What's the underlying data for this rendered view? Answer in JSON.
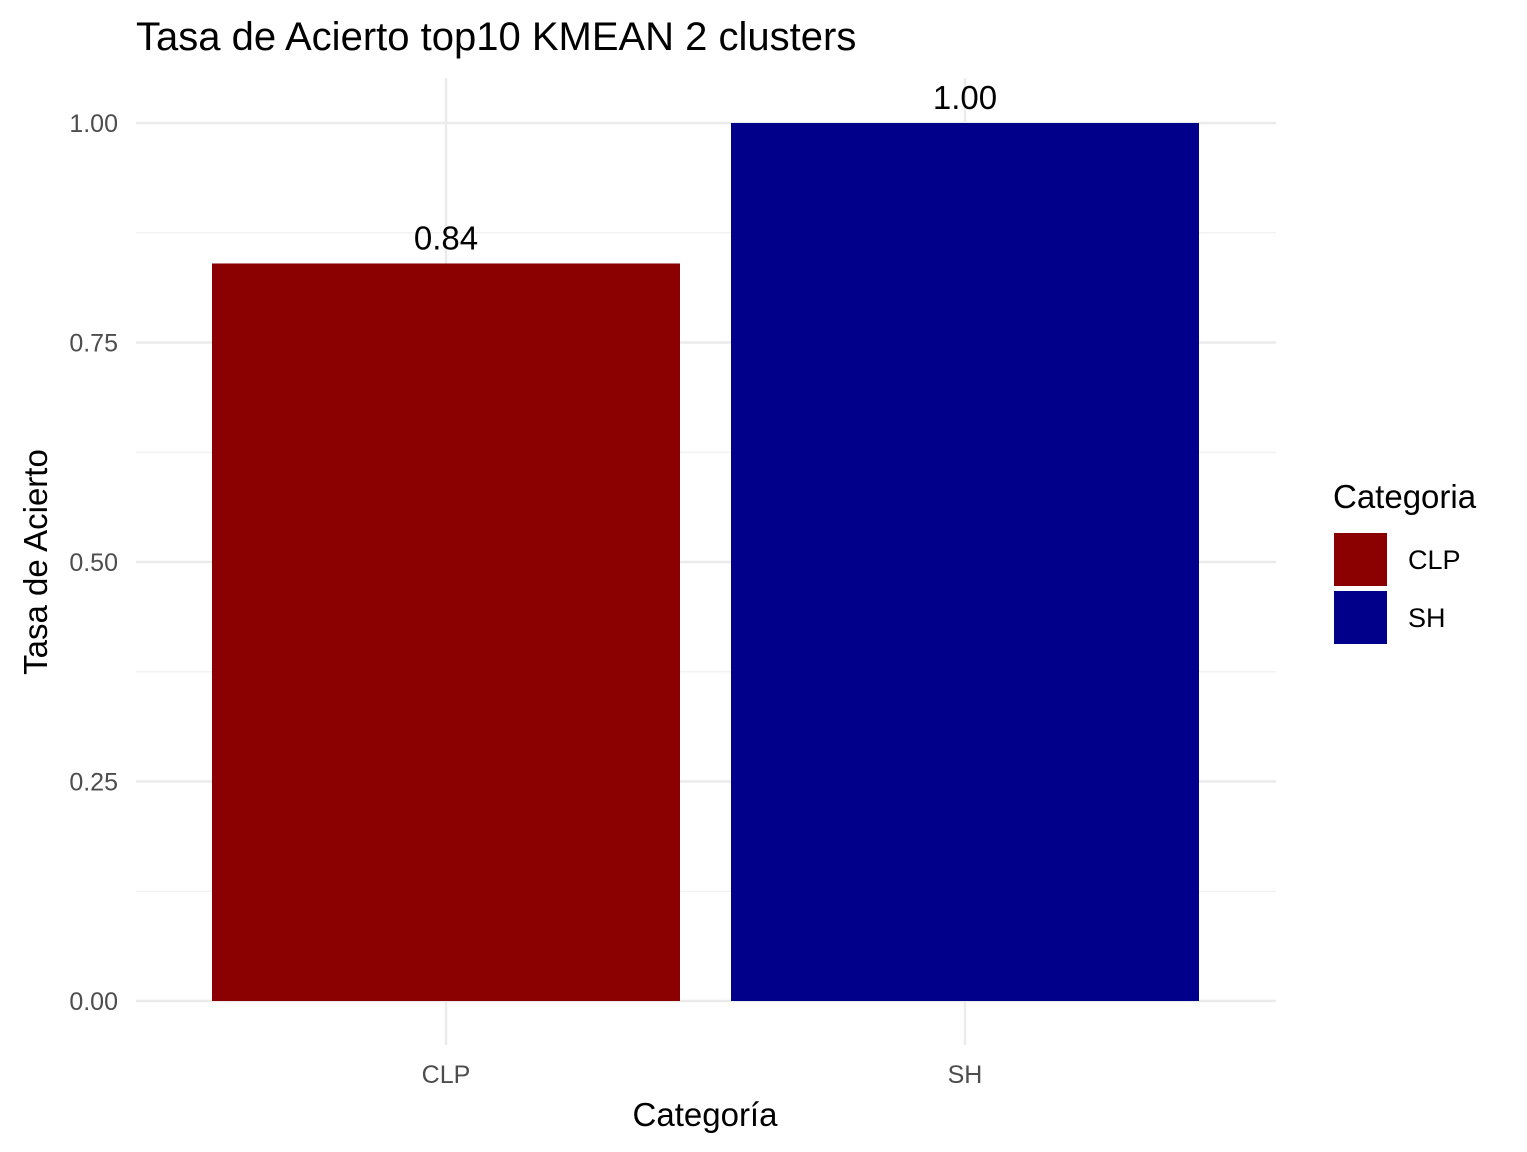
{
  "chart_data": {
    "type": "bar",
    "title": "Tasa de Acierto top10 KMEAN 2 clusters",
    "xlabel": "Categoría",
    "ylabel": "Tasa de Acierto",
    "categories": [
      "CLP",
      "SH"
    ],
    "values": [
      0.84,
      1.0
    ],
    "data_labels": [
      "0.84",
      "1.00"
    ],
    "colors": [
      "#8b0000",
      "#00008b"
    ],
    "ylim": [
      0,
      1.05
    ],
    "yticks": [
      0,
      0.25,
      0.5,
      0.75,
      1.0
    ],
    "ytick_labels": [
      "0.00",
      "0.25",
      "0.50",
      "0.75",
      "1.00"
    ],
    "grid": true,
    "legend": {
      "title": "Categoria",
      "position": "right",
      "entries": [
        {
          "label": "CLP",
          "color": "#8b0000"
        },
        {
          "label": "SH",
          "color": "#00008b"
        }
      ]
    }
  }
}
